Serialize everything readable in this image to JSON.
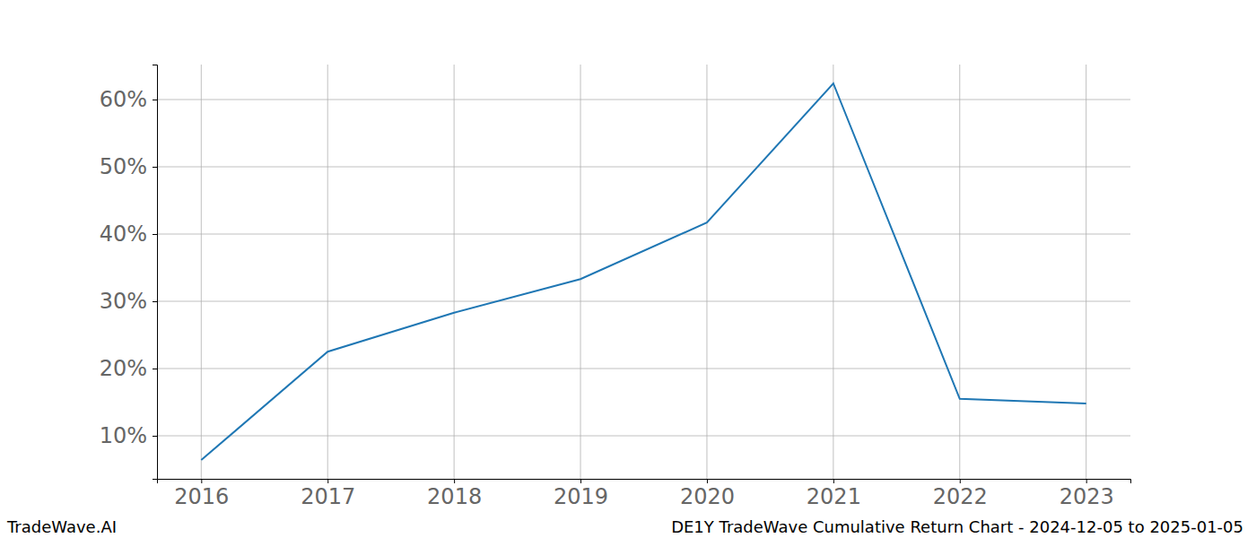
{
  "chart_data": {
    "type": "line",
    "title": "DE1Y TradeWave Cumulative Return Chart - 2024-12-05 to 2025-01-05",
    "source": "TradeWave.AI",
    "x": [
      2016,
      2017,
      2018,
      2019,
      2020,
      2021,
      2022,
      2023
    ],
    "values": [
      6.4,
      22.5,
      28.3,
      33.3,
      41.7,
      62.4,
      15.5,
      14.8
    ],
    "color": "#1f77b4",
    "xlim": [
      2015.65,
      2023.35
    ],
    "xticks": [
      2016,
      2017,
      2018,
      2019,
      2020,
      2021,
      2022,
      2023
    ],
    "ylim": [
      3.6,
      65.2
    ],
    "yticks": [
      {
        "value": 10,
        "label": "10%"
      },
      {
        "value": 20,
        "label": "20%"
      },
      {
        "value": 30,
        "label": "30%"
      },
      {
        "value": 40,
        "label": "40%"
      },
      {
        "value": 50,
        "label": "50%"
      },
      {
        "value": 60,
        "label": "60%"
      }
    ],
    "grid": true
  }
}
